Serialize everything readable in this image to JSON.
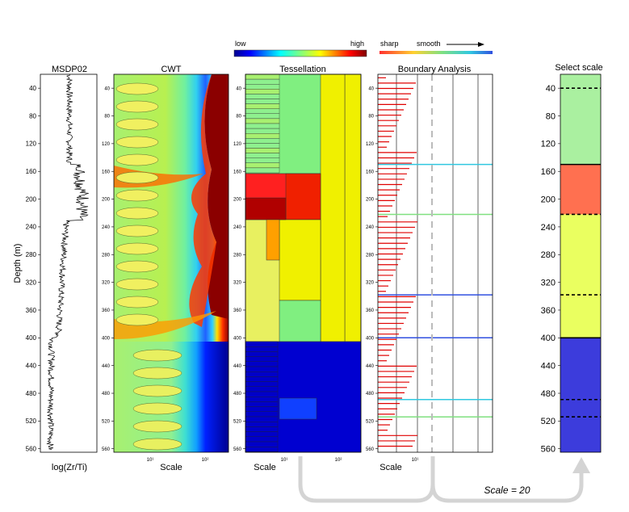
{
  "chart_data": {
    "type": "heatmap",
    "depth_ticks": [
      40,
      80,
      120,
      160,
      200,
      240,
      280,
      320,
      360,
      400,
      440,
      480,
      520,
      560
    ],
    "depth_range": [
      20,
      565
    ],
    "colorbar": {
      "low_label": "low",
      "high_label": "high"
    },
    "boundary_legend": {
      "sharp_label": "sharp",
      "smooth_label": "smooth"
    },
    "panels": {
      "msdp": {
        "title": "MSDP02",
        "xlabel": "log(Zr/Ti)",
        "ylabel": "Depth (m)"
      },
      "cwt": {
        "title": "CWT",
        "xlabel": "Scale",
        "x_ticks": [
          "10¹",
          "10²"
        ]
      },
      "tessellation": {
        "title": "Tessellation",
        "xlabel": "Scale",
        "x_ticks": [
          "10¹",
          "10²"
        ]
      },
      "boundary": {
        "title": "Boundary Analysis",
        "xlabel": "Scale",
        "x_ticks": [
          "10¹"
        ]
      },
      "select": {
        "title": "Select scale"
      }
    },
    "selected_scale_label": "Scale = 20",
    "selected_segments": [
      {
        "top": 20,
        "bottom": 150,
        "color": "#aaf0a0"
      },
      {
        "top": 150,
        "bottom": 222,
        "color": "#ff7050"
      },
      {
        "top": 222,
        "bottom": 400,
        "color": "#eaff60"
      },
      {
        "top": 400,
        "bottom": 565,
        "color": "#3c3cdc"
      }
    ],
    "selected_boundaries": {
      "solid": [
        150,
        400
      ],
      "dashed": [
        40,
        222,
        338,
        489,
        514
      ]
    },
    "series_colors": {
      "high": "#800000",
      "mid": "#80ff80",
      "low": "#00008b"
    }
  }
}
